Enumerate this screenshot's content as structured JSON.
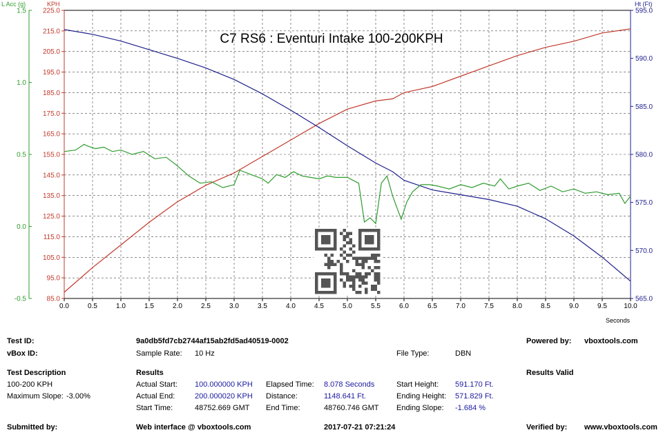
{
  "chart_data": {
    "type": "line",
    "title": "C7 RS6 : Eventuri Intake 100-200KPH",
    "xlabel": "Seconds",
    "xlim": [
      0,
      10
    ],
    "x_ticks": [
      "0.0",
      "0.5",
      "1.0",
      "1.5",
      "2.0",
      "2.5",
      "3.0",
      "3.5",
      "4.0",
      "4.5",
      "5.0",
      "5.5",
      "6.0",
      "6.5",
      "7.0",
      "7.5",
      "8.0",
      "8.5",
      "9.0",
      "9.5",
      "10.0"
    ],
    "axes": {
      "lacc": {
        "label": "L Acc (g)",
        "color": "#2e9b2e",
        "lim": [
          -0.5,
          1.5
        ],
        "ticks": [
          "-0.5",
          "0.0",
          "0.5",
          "1.0",
          "1.5"
        ]
      },
      "kph": {
        "label": "KPH",
        "color": "#c0392b",
        "lim": [
          85,
          225
        ],
        "ticks": [
          "85.0",
          "95.0",
          "105.0",
          "115.0",
          "125.0",
          "135.0",
          "145.0",
          "155.0",
          "165.0",
          "175.0",
          "185.0",
          "195.0",
          "205.0",
          "215.0",
          "225.0"
        ]
      },
      "ht": {
        "label": "Ht (Ft)",
        "color": "#1e1e8c",
        "lim": [
          565,
          595
        ],
        "ticks": [
          "565.0",
          "570.0",
          "575.0",
          "580.0",
          "585.0",
          "590.0",
          "595.0"
        ]
      }
    },
    "grid": true,
    "series": [
      {
        "name": "KPH",
        "axis": "kph",
        "color": "#c0392b",
        "x": [
          0,
          0.5,
          1,
          1.5,
          2,
          2.5,
          3,
          3.5,
          4,
          4.5,
          5,
          5.5,
          5.8,
          6,
          6.5,
          7,
          7.5,
          8,
          8.5,
          9,
          9.5,
          10
        ],
        "y": [
          88,
          100,
          111,
          122,
          132,
          140,
          146,
          154,
          162,
          170,
          177,
          181,
          182,
          185,
          188,
          193,
          198,
          203,
          207,
          210,
          214,
          216
        ]
      },
      {
        "name": "Ht (Ft)",
        "axis": "ht",
        "color": "#1e1e8c",
        "x": [
          0,
          0.5,
          1,
          1.5,
          2,
          2.5,
          3,
          3.5,
          4,
          4.5,
          5,
          5.5,
          5.8,
          6,
          6.5,
          7,
          7.5,
          8,
          8.5,
          9,
          9.5,
          10
        ],
        "y": [
          593.0,
          592.5,
          591.8,
          590.9,
          590.0,
          589.0,
          587.8,
          586.3,
          584.6,
          582.8,
          580.9,
          579.1,
          578.2,
          577.3,
          576.3,
          575.8,
          575.3,
          574.6,
          573.3,
          571.5,
          569.3,
          566.8
        ]
      },
      {
        "name": "L Acc (g)",
        "axis": "lacc",
        "color": "#2e9b2e",
        "x": [
          0,
          0.2,
          0.35,
          0.4,
          0.55,
          0.7,
          0.85,
          1.0,
          1.2,
          1.4,
          1.6,
          1.8,
          2.0,
          2.2,
          2.4,
          2.6,
          2.8,
          3.0,
          3.1,
          3.3,
          3.5,
          3.6,
          3.75,
          3.9,
          4.05,
          4.2,
          4.35,
          4.5,
          4.65,
          4.8,
          5.0,
          5.2,
          5.3,
          5.4,
          5.5,
          5.6,
          5.7,
          5.8,
          5.95,
          6.05,
          6.15,
          6.3,
          6.45,
          6.6,
          6.8,
          7.0,
          7.2,
          7.4,
          7.6,
          7.7,
          7.85,
          8.0,
          8.2,
          8.4,
          8.6,
          8.8,
          9.0,
          9.2,
          9.4,
          9.6,
          9.8,
          9.9,
          10.0
        ],
        "y": [
          0.52,
          0.53,
          0.57,
          0.56,
          0.54,
          0.55,
          0.52,
          0.53,
          0.5,
          0.52,
          0.47,
          0.48,
          0.42,
          0.35,
          0.3,
          0.31,
          0.27,
          0.29,
          0.39,
          0.36,
          0.33,
          0.3,
          0.36,
          0.34,
          0.38,
          0.35,
          0.34,
          0.33,
          0.35,
          0.34,
          0.34,
          0.3,
          0.03,
          0.06,
          0.02,
          0.3,
          0.35,
          0.21,
          0.05,
          0.17,
          0.24,
          0.29,
          0.29,
          0.28,
          0.26,
          0.29,
          0.27,
          0.3,
          0.28,
          0.33,
          0.26,
          0.28,
          0.3,
          0.25,
          0.28,
          0.24,
          0.26,
          0.23,
          0.24,
          0.22,
          0.23,
          0.16,
          0.21
        ]
      }
    ]
  },
  "report": {
    "test_id_label": "Test ID:",
    "test_id_value": "9a0db5fd7cb2744af15ab2fd5ad40519-0002",
    "vbox_id_label": "vBox ID:",
    "sample_rate_label": "Sample Rate:",
    "sample_rate_value": "10 Hz",
    "file_type_label": "File Type:",
    "file_type_value": "DBN",
    "powered_by_label": "Powered by:",
    "powered_by_value": "vboxtools.com",
    "test_description_label": "Test Description",
    "test_description_value": "100-200 KPH",
    "max_slope_label": "Maximum Slope:",
    "max_slope_value": "-3.00%",
    "results_label": "Results",
    "results_valid_label": "Results Valid",
    "actual_start_label": "Actual Start:",
    "actual_start_value": "100.000000 KPH",
    "actual_end_label": "Actual End:",
    "actual_end_value": "200.000020 KPH",
    "start_time_label": "Start Time:",
    "start_time_value": "48752.669 GMT",
    "elapsed_time_label": "Elapsed Time:",
    "elapsed_time_value": "8.078 Seconds",
    "distance_label": "Distance:",
    "distance_value": "1148.641 Ft.",
    "end_time_label": "End Time:",
    "end_time_value": "48760.746 GMT",
    "start_height_label": "Start Height:",
    "start_height_value": "591.170 Ft.",
    "ending_height_label": "Ending Height:",
    "ending_height_value": "571.829 Ft.",
    "ending_slope_label": "Ending Slope:",
    "ending_slope_value": "-1.684 %",
    "submitted_by_label": "Submitted by:",
    "web_interface_label": "Web interface @ vboxtools.com",
    "timestamp_value": "2017-07-21 07:21:24",
    "verified_by_label": "Verified by:",
    "verified_by_value": "www.vboxtools.com"
  }
}
